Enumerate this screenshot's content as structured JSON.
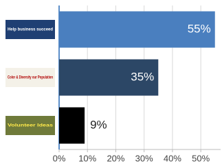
{
  "chart_data": {
    "type": "bar",
    "orientation": "horizontal",
    "categories": [
      "Help business succeed",
      "Color & Diversity our Population",
      "Volunteer Ideas"
    ],
    "values": [
      55,
      35,
      9
    ],
    "value_labels": [
      "55%",
      "35%",
      "9%"
    ],
    "colors": [
      "#4a7fbf",
      "#2c4766",
      "#000000"
    ],
    "xlim": [
      0,
      57
    ],
    "xticks": [
      {
        "value": 0,
        "label": "0%"
      },
      {
        "value": 10,
        "label": "10%"
      },
      {
        "value": 20,
        "label": "20%"
      },
      {
        "value": 30,
        "label": "30%"
      },
      {
        "value": 40,
        "label": "40%"
      },
      {
        "value": 50,
        "label": "50%"
      }
    ],
    "grid": true
  }
}
